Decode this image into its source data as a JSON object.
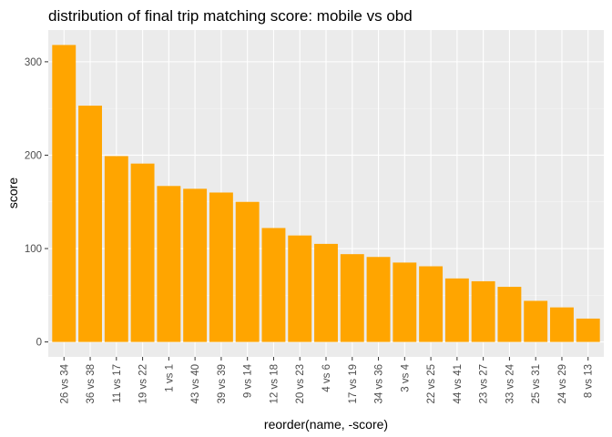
{
  "chart_data": {
    "type": "bar",
    "title": "distribution of final trip matching score: mobile vs obd",
    "xlabel": "reorder(name, -score)",
    "ylabel": "score",
    "categories": [
      "26 vs 34",
      "36 vs 38",
      "11 vs 17",
      "19 vs 22",
      "1 vs 1",
      "43 vs 40",
      "39 vs 39",
      "9 vs 14",
      "12 vs 18",
      "20 vs 23",
      "4 vs 6",
      "17 vs 19",
      "34 vs 36",
      "3 vs 4",
      "22 vs 25",
      "44 vs 41",
      "23 vs 27",
      "33 vs 24",
      "25 vs 31",
      "24 vs 29",
      "8 vs 13"
    ],
    "values": [
      318,
      253,
      199,
      191,
      167,
      164,
      160,
      150,
      122,
      114,
      105,
      94,
      91,
      85,
      81,
      68,
      65,
      59,
      44,
      37,
      25
    ],
    "yticks": [
      0,
      100,
      200,
      300
    ],
    "ylim": [
      -16,
      334
    ],
    "grid": true,
    "legend": "none",
    "colors": {
      "bar": "#FFA500",
      "panel": "#EBEBEB",
      "grid_major": "#FFFFFF",
      "grid_minor": "#F5F5F5",
      "tick": "#333333"
    }
  }
}
